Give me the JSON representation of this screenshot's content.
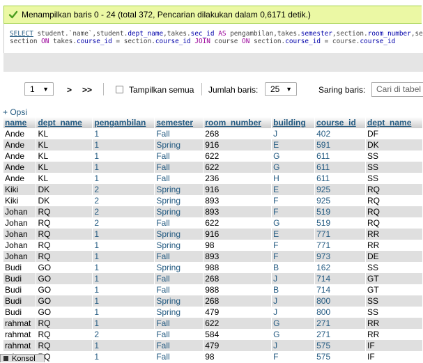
{
  "message": "Menampilkan baris 0 - 24 (total 372, Pencarian dilakukan dalam 0,6171 detik.)",
  "sql": {
    "line1": [
      {
        "t": "SELECT",
        "c": "kw u"
      },
      {
        "t": " student.`name`,student.",
        "c": ""
      },
      {
        "t": "dept_name",
        "c": "col"
      },
      {
        "t": ",takes.",
        "c": ""
      },
      {
        "t": "sec_id",
        "c": "col"
      },
      {
        "t": " ",
        "c": ""
      },
      {
        "t": "AS",
        "c": "kw"
      },
      {
        "t": " pengambilan,takes.",
        "c": ""
      },
      {
        "t": "semester",
        "c": "col"
      },
      {
        "t": ",section.",
        "c": ""
      },
      {
        "t": "room_number",
        "c": "col"
      },
      {
        "t": ",section.bu",
        "c": ""
      }
    ],
    "line2": [
      {
        "t": "section ",
        "c": ""
      },
      {
        "t": "ON",
        "c": "kw"
      },
      {
        "t": " takes.",
        "c": ""
      },
      {
        "t": "course_id",
        "c": "col"
      },
      {
        "t": " = section.",
        "c": ""
      },
      {
        "t": "course_id",
        "c": "col"
      },
      {
        "t": " ",
        "c": ""
      },
      {
        "t": "JOIN",
        "c": "kw"
      },
      {
        "t": " course ",
        "c": ""
      },
      {
        "t": "ON",
        "c": "kw"
      },
      {
        "t": " section.",
        "c": ""
      },
      {
        "t": "course_id",
        "c": "col"
      },
      {
        "t": " = course.",
        "c": ""
      },
      {
        "t": "course_id",
        "c": "col"
      }
    ]
  },
  "nav": {
    "page": "1",
    "next": ">",
    "last": ">>",
    "show_all": "Tampilkan semua",
    "rows_label": "Jumlah baris:",
    "rows_value": "25",
    "filter_label": "Saring baris:",
    "filter_placeholder": "Cari di tabel ini"
  },
  "opsi": "+ Opsi",
  "columns": [
    "name",
    "dept_name",
    "pengambilan",
    "semester",
    "room_number",
    "building",
    "course_id",
    "dept_name"
  ],
  "rows": [
    [
      "Ande",
      "KL",
      "1",
      "Fall",
      "268",
      "J",
      "402",
      "DF"
    ],
    [
      "Ande",
      "KL",
      "1",
      "Spring",
      "916",
      "E",
      "591",
      "DK"
    ],
    [
      "Ande",
      "KL",
      "1",
      "Fall",
      "622",
      "G",
      "611",
      "SS"
    ],
    [
      "Ande",
      "KL",
      "1",
      "Fall",
      "622",
      "G",
      "611",
      "SS"
    ],
    [
      "Ande",
      "KL",
      "1",
      "Fall",
      "236",
      "H",
      "611",
      "SS"
    ],
    [
      "Kiki",
      "DK",
      "2",
      "Spring",
      "916",
      "E",
      "925",
      "RQ"
    ],
    [
      "Kiki",
      "DK",
      "2",
      "Spring",
      "893",
      "F",
      "925",
      "RQ"
    ],
    [
      "Johan",
      "RQ",
      "2",
      "Spring",
      "893",
      "F",
      "519",
      "RQ"
    ],
    [
      "Johan",
      "RQ",
      "2",
      "Fall",
      "622",
      "G",
      "519",
      "RQ"
    ],
    [
      "Johan",
      "RQ",
      "1",
      "Spring",
      "916",
      "E",
      "771",
      "RR"
    ],
    [
      "Johan",
      "RQ",
      "1",
      "Spring",
      "98",
      "F",
      "771",
      "RR"
    ],
    [
      "Johan",
      "RQ",
      "1",
      "Fall",
      "893",
      "F",
      "973",
      "DE"
    ],
    [
      "Budi",
      "GO",
      "1",
      "Spring",
      "988",
      "B",
      "162",
      "SS"
    ],
    [
      "Budi",
      "GO",
      "1",
      "Fall",
      "268",
      "J",
      "714",
      "GT"
    ],
    [
      "Budi",
      "GO",
      "1",
      "Fall",
      "988",
      "B",
      "714",
      "GT"
    ],
    [
      "Budi",
      "GO",
      "1",
      "Spring",
      "268",
      "J",
      "800",
      "SS"
    ],
    [
      "Budi",
      "GO",
      "1",
      "Spring",
      "479",
      "J",
      "800",
      "SS"
    ],
    [
      "rahmat",
      "RQ",
      "1",
      "Fall",
      "622",
      "G",
      "271",
      "RR"
    ],
    [
      "rahmat",
      "RQ",
      "2",
      "Fall",
      "584",
      "G",
      "271",
      "RR"
    ],
    [
      "rahmat",
      "RQ",
      "1",
      "Fall",
      "479",
      "J",
      "575",
      "IF"
    ],
    [
      "rahmat",
      "RQ",
      "1",
      "Fall",
      "98",
      "F",
      "575",
      "IF"
    ]
  ],
  "console": "Konsol",
  "colors": {
    "success_bg": "#ebf8a4",
    "link": "#235a81",
    "row_alt": "#dfdfdf"
  }
}
